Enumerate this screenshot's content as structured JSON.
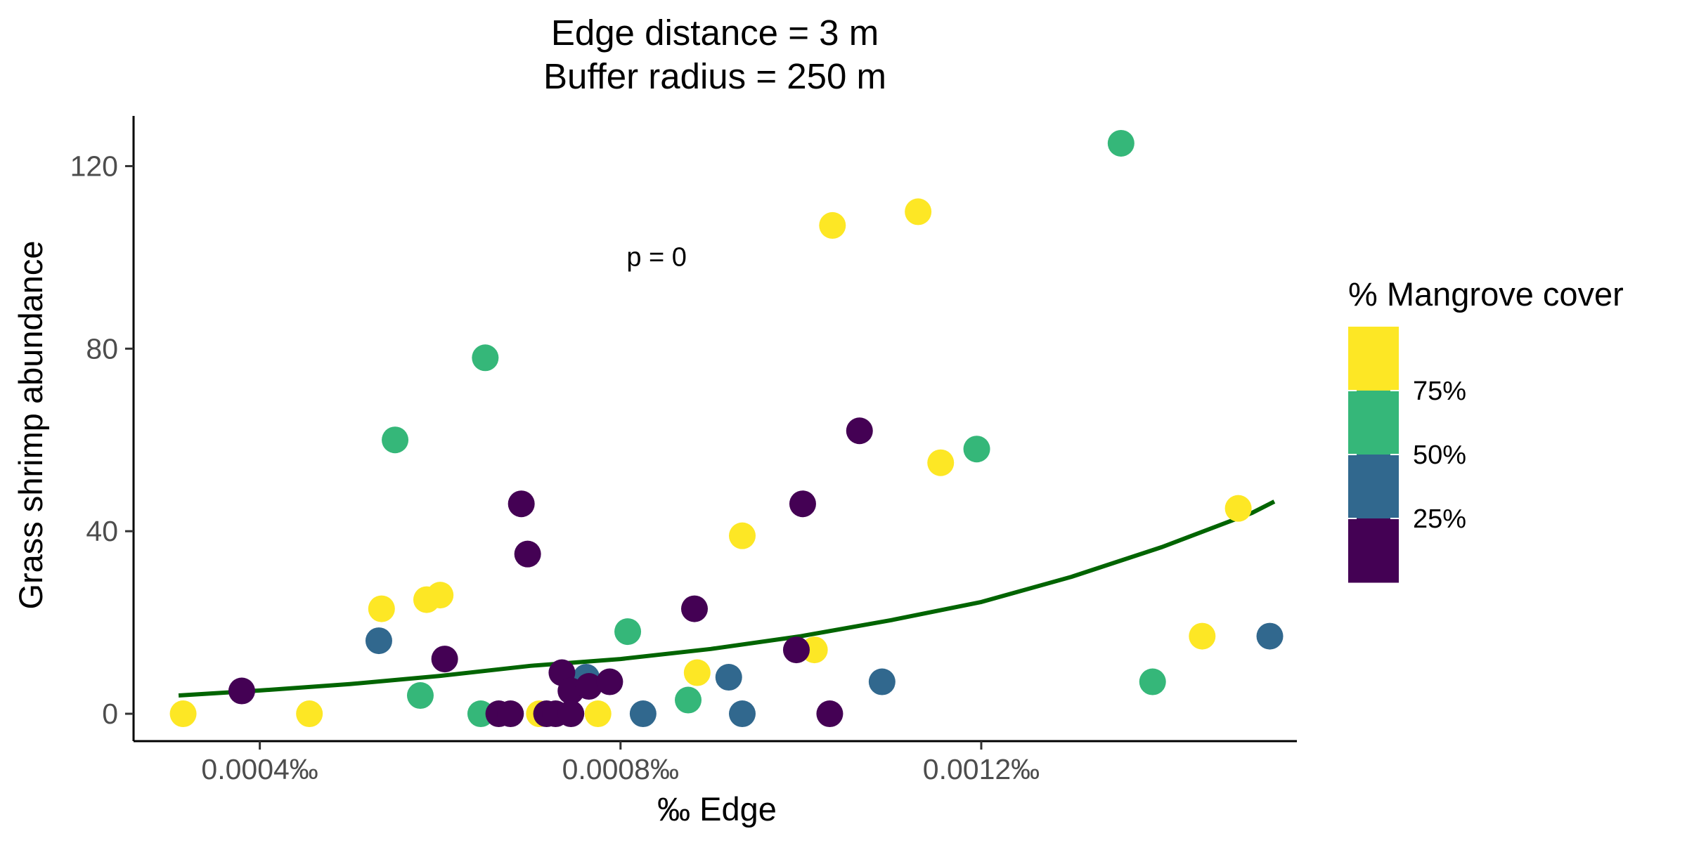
{
  "chart_data": {
    "type": "scatter",
    "title": "Edge distance = 3 m",
    "subtitle": "Buffer radius = 250 m",
    "xlabel": "‰ Edge",
    "ylabel": "Grass shrimp abundance",
    "xlim": [
      0.00026,
      0.00155
    ],
    "ylim": [
      -6,
      131
    ],
    "x_ticks": [
      {
        "value": 0.0004,
        "label": "0.0004‰"
      },
      {
        "value": 0.0008,
        "label": "0.0008‰"
      },
      {
        "value": 0.0012,
        "label": "0.0012‰"
      }
    ],
    "y_ticks": [
      {
        "value": 0,
        "label": "0"
      },
      {
        "value": 40,
        "label": "40"
      },
      {
        "value": 80,
        "label": "80"
      },
      {
        "value": 120,
        "label": "120"
      }
    ],
    "annotation": {
      "text": "p = 0",
      "x": 0.00084,
      "y": 100
    },
    "legend": {
      "title": "% Mangrove cover",
      "position": "right",
      "colors": [
        "#fde725",
        "#35b779",
        "#31688e",
        "#440154"
      ],
      "labels": [
        "75%",
        "50%",
        "25%"
      ]
    },
    "colors": {
      "yellow": "#fde725",
      "green": "#35b779",
      "blue": "#31688e",
      "purple": "#440154",
      "fit_line": "#006400",
      "axis": "#000000"
    },
    "points": [
      {
        "x": 0.000315,
        "y": 0,
        "color": "yellow"
      },
      {
        "x": 0.000455,
        "y": 0,
        "color": "yellow"
      },
      {
        "x": 0.000535,
        "y": 23,
        "color": "yellow"
      },
      {
        "x": 0.000585,
        "y": 25,
        "color": "yellow"
      },
      {
        "x": 0.0006,
        "y": 26,
        "color": "yellow"
      },
      {
        "x": 0.00071,
        "y": 0,
        "color": "yellow"
      },
      {
        "x": 0.000775,
        "y": 0,
        "color": "yellow"
      },
      {
        "x": 0.000885,
        "y": 9,
        "color": "yellow"
      },
      {
        "x": 0.000935,
        "y": 39,
        "color": "yellow"
      },
      {
        "x": 0.001015,
        "y": 14,
        "color": "yellow"
      },
      {
        "x": 0.001035,
        "y": 107,
        "color": "yellow"
      },
      {
        "x": 0.00113,
        "y": 110,
        "color": "yellow"
      },
      {
        "x": 0.001155,
        "y": 55,
        "color": "yellow"
      },
      {
        "x": 0.001445,
        "y": 17,
        "color": "yellow"
      },
      {
        "x": 0.001485,
        "y": 45,
        "color": "yellow"
      },
      {
        "x": 0.00055,
        "y": 60,
        "color": "green"
      },
      {
        "x": 0.000578,
        "y": 4,
        "color": "green"
      },
      {
        "x": 0.000645,
        "y": 0,
        "color": "green"
      },
      {
        "x": 0.00065,
        "y": 78,
        "color": "green"
      },
      {
        "x": 0.000808,
        "y": 18,
        "color": "green"
      },
      {
        "x": 0.000875,
        "y": 3,
        "color": "green"
      },
      {
        "x": 0.001195,
        "y": 58,
        "color": "green"
      },
      {
        "x": 0.001355,
        "y": 125,
        "color": "green"
      },
      {
        "x": 0.00139,
        "y": 7,
        "color": "green"
      },
      {
        "x": 0.000532,
        "y": 16,
        "color": "blue"
      },
      {
        "x": 0.000762,
        "y": 8,
        "color": "blue"
      },
      {
        "x": 0.000825,
        "y": 0,
        "color": "blue"
      },
      {
        "x": 0.00092,
        "y": 8,
        "color": "blue"
      },
      {
        "x": 0.000935,
        "y": 0,
        "color": "blue"
      },
      {
        "x": 0.00109,
        "y": 7,
        "color": "blue"
      },
      {
        "x": 0.00152,
        "y": 17,
        "color": "blue"
      },
      {
        "x": 0.00038,
        "y": 5,
        "color": "purple"
      },
      {
        "x": 0.000605,
        "y": 12,
        "color": "purple"
      },
      {
        "x": 0.000665,
        "y": 0,
        "color": "purple"
      },
      {
        "x": 0.000678,
        "y": 0,
        "color": "purple"
      },
      {
        "x": 0.00069,
        "y": 46,
        "color": "purple"
      },
      {
        "x": 0.000697,
        "y": 35,
        "color": "purple"
      },
      {
        "x": 0.000718,
        "y": 0,
        "color": "purple"
      },
      {
        "x": 0.000728,
        "y": 0,
        "color": "purple"
      },
      {
        "x": 0.000735,
        "y": 9,
        "color": "purple"
      },
      {
        "x": 0.000745,
        "y": 5,
        "color": "purple"
      },
      {
        "x": 0.000745,
        "y": 0,
        "color": "purple"
      },
      {
        "x": 0.000765,
        "y": 6,
        "color": "purple"
      },
      {
        "x": 0.000788,
        "y": 7,
        "color": "purple"
      },
      {
        "x": 0.000882,
        "y": 23,
        "color": "purple"
      },
      {
        "x": 0.000995,
        "y": 14,
        "color": "purple"
      },
      {
        "x": 0.001002,
        "y": 46,
        "color": "purple"
      },
      {
        "x": 0.001032,
        "y": 0,
        "color": "purple"
      },
      {
        "x": 0.001065,
        "y": 62,
        "color": "purple"
      }
    ],
    "fit_line": {
      "x": [
        0.00031,
        0.0004,
        0.0005,
        0.0006,
        0.0007,
        0.0008,
        0.0009,
        0.001,
        0.0011,
        0.0012,
        0.0013,
        0.0014,
        0.0015,
        0.001525
      ],
      "y": [
        4.0,
        5.1,
        6.5,
        8.3,
        10.5,
        12.0,
        14.2,
        17.0,
        20.5,
        24.5,
        30.0,
        36.5,
        44.0,
        46.5
      ]
    }
  }
}
